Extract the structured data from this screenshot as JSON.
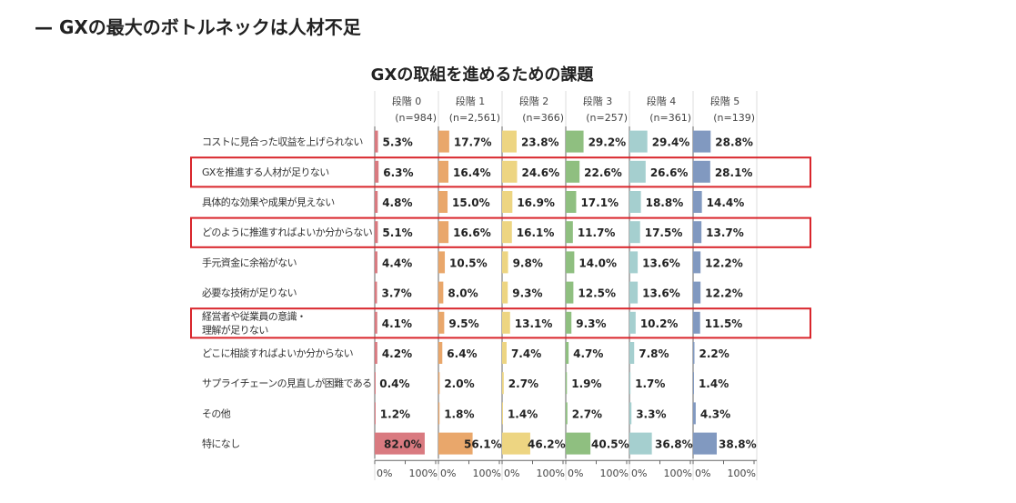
{
  "headline": "— GXの最大のボトルネックは人材不足",
  "chart_data": {
    "type": "bar",
    "title": "GXの取組を進めるための課題",
    "orientation": "horizontal",
    "panels": [
      {
        "name": "段階 0",
        "n": "(n=984)",
        "color": "#d97a80"
      },
      {
        "name": "段階 1",
        "n": "(n=2,561)",
        "color": "#e9a76b"
      },
      {
        "name": "段階 2",
        "n": "(n=366)",
        "color": "#edd582"
      },
      {
        "name": "段階 3",
        "n": "(n=257)",
        "color": "#8fbf80"
      },
      {
        "name": "段階 4",
        "n": "(n=361)",
        "color": "#a5cfcf"
      },
      {
        "name": "段階 5",
        "n": "(n=139)",
        "color": "#8199c0"
      }
    ],
    "categories": [
      "コストに見合った収益を上げられない",
      "GXを推進する人材が足りない",
      "具体的な効果や成果が見えない",
      "どのように推進すればよいか分からない",
      "手元資金に余裕がない",
      "必要な技術が足りない",
      "経営者や従業員の意識・\n理解が足りない",
      "どこに相談すればよいか分からない",
      "サプライチェーンの見直しが困難である",
      "その他",
      "特になし"
    ],
    "values": [
      [
        5.3,
        17.7,
        23.8,
        29.2,
        29.4,
        28.8
      ],
      [
        6.3,
        16.4,
        24.6,
        22.6,
        26.6,
        28.1
      ],
      [
        4.8,
        15.0,
        16.9,
        17.1,
        18.8,
        14.4
      ],
      [
        5.1,
        16.6,
        16.1,
        11.7,
        17.5,
        13.7
      ],
      [
        4.4,
        10.5,
        9.8,
        14.0,
        13.6,
        12.2
      ],
      [
        3.7,
        8.0,
        9.3,
        12.5,
        13.6,
        12.2
      ],
      [
        4.1,
        9.5,
        13.1,
        9.3,
        10.2,
        11.5
      ],
      [
        4.2,
        6.4,
        7.4,
        4.7,
        7.8,
        2.2
      ],
      [
        0.4,
        2.0,
        2.7,
        1.9,
        1.7,
        1.4
      ],
      [
        1.2,
        1.8,
        1.4,
        2.7,
        3.3,
        4.3
      ],
      [
        82.0,
        56.1,
        46.2,
        40.5,
        36.8,
        38.8
      ]
    ],
    "highlighted_rows": [
      1,
      3,
      6
    ],
    "highlight_color": "#d9252b",
    "xlim": [
      0,
      100
    ],
    "xticks": [
      "0%",
      "100%"
    ]
  }
}
